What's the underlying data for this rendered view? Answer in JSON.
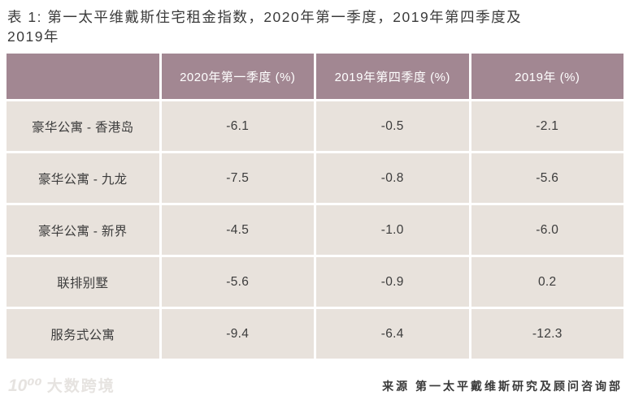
{
  "title": {
    "line1": "表 1: 第一太平维戴斯住宅租金指数，2020年第一季度，2019年第四季度及",
    "line2": "2019年"
  },
  "table": {
    "headers": [
      "",
      "2020年第一季度 (%)",
      "2019年第四季度 (%)",
      "2019年 (%)"
    ],
    "rows": [
      {
        "label": "豪华公寓 - 香港岛",
        "values": [
          "-6.1",
          "-0.5",
          "-2.1"
        ]
      },
      {
        "label": "豪华公寓 - 九龙",
        "values": [
          "-7.5",
          "-0.8",
          "-5.6"
        ]
      },
      {
        "label": "豪华公寓 - 新界",
        "values": [
          "-4.5",
          "-1.0",
          "-6.0"
        ]
      },
      {
        "label": "联排别墅",
        "values": [
          "-5.6",
          "-0.9",
          "0.2"
        ]
      },
      {
        "label": "服务式公寓",
        "values": [
          "-9.4",
          "-6.4",
          "-12.3"
        ]
      }
    ]
  },
  "source": "来源 第一太平戴维斯研究及顾问咨询部",
  "watermark": {
    "icon_text": "10⁰⁰",
    "text": "大数跨境"
  },
  "colors": {
    "header_bg": "#a28792",
    "row_bg": "#e8e2dc",
    "header_text": "#ffffff",
    "body_text": "#3c3c3c",
    "title_text": "#3b3b3b",
    "watermark": "#e6e3e0",
    "page_bg": "#ffffff"
  }
}
